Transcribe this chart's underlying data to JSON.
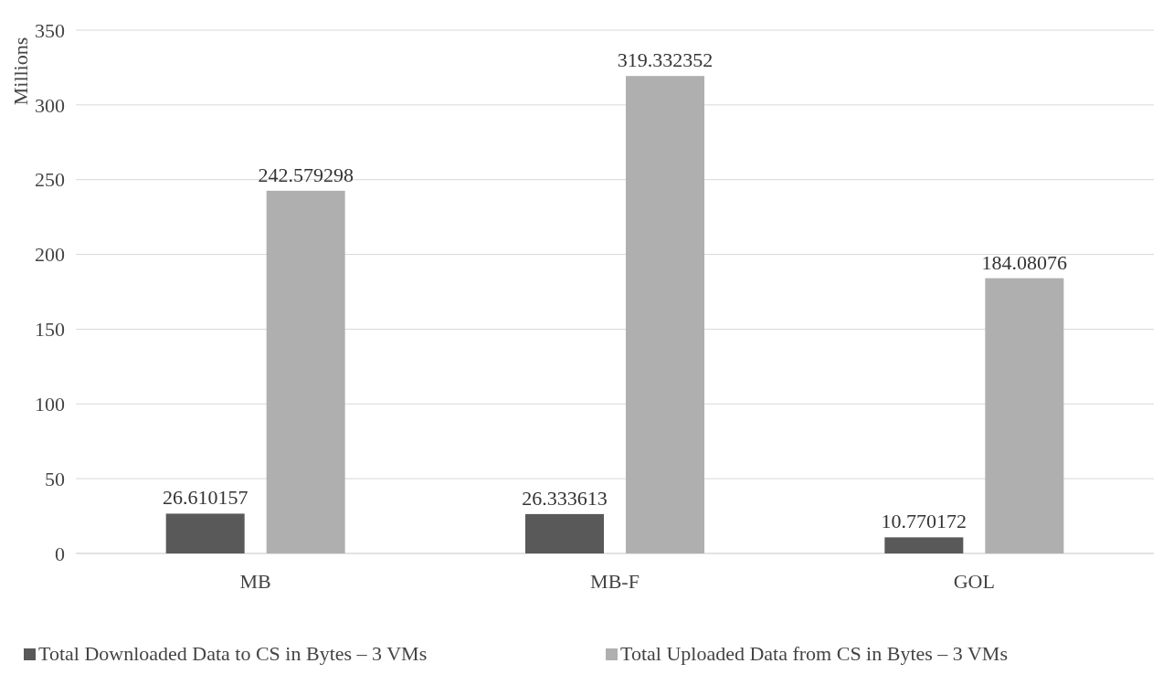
{
  "chart_data": {
    "type": "bar",
    "ylabel": "Millions",
    "categories": [
      "MB",
      "MB-F",
      "GOL"
    ],
    "series": [
      {
        "name": "Total Downloaded Data to CS in Bytes – 3 VMs",
        "color": "#595959",
        "values": [
          26.610157,
          26.333613,
          10.770172
        ]
      },
      {
        "name": "Total Uploaded Data from CS in Bytes – 3 VMs",
        "color": "#afafaf",
        "values": [
          242.579298,
          319.332352,
          184.08076
        ]
      }
    ],
    "ylim": [
      0,
      350
    ],
    "yticks": [
      0,
      50,
      100,
      150,
      200,
      250,
      300,
      350
    ],
    "grid": "y",
    "legend": "bottom",
    "data_labels": true
  }
}
